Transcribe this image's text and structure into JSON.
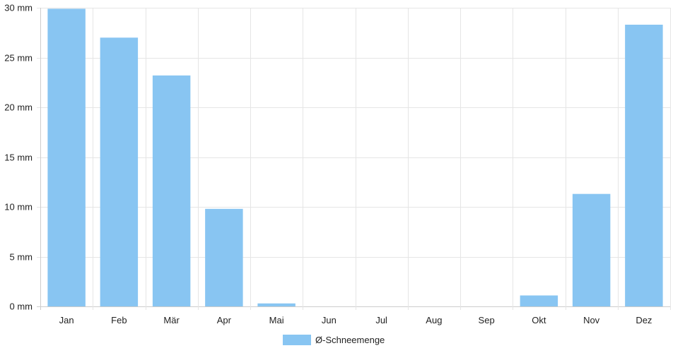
{
  "chart_data": {
    "type": "bar",
    "categories": [
      "Jan",
      "Feb",
      "Mär",
      "Apr",
      "Mai",
      "Jun",
      "Jul",
      "Aug",
      "Sep",
      "Okt",
      "Nov",
      "Dez"
    ],
    "series": [
      {
        "name": "Ø-Schneemenge",
        "values": [
          29.9,
          27.0,
          23.2,
          9.8,
          0.3,
          0,
          0,
          0,
          0,
          1.1,
          11.3,
          28.3
        ],
        "color": "#88c5f2"
      }
    ],
    "y_ticks": [
      "0 mm",
      "5 mm",
      "10 mm",
      "15 mm",
      "20 mm",
      "25 mm",
      "30 mm"
    ],
    "y_tick_values": [
      0,
      5,
      10,
      15,
      20,
      25,
      30
    ],
    "ylim": [
      0,
      30
    ],
    "grid": true,
    "legend_position": "bottom-center",
    "colors": {
      "grid": "#e5e5e5",
      "axis": "#cccccc",
      "text": "#222222"
    }
  }
}
